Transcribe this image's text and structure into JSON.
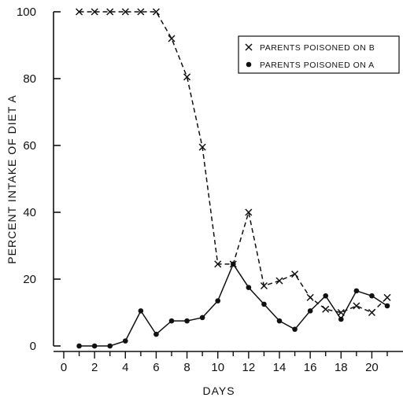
{
  "chart_data": {
    "type": "line",
    "title": "",
    "xlabel": "DAYS",
    "ylabel": "PERCENT INTAKE OF DIET A",
    "xlim": [
      0,
      21
    ],
    "ylim": [
      0,
      100
    ],
    "x_ticks": [
      0,
      2,
      4,
      6,
      8,
      10,
      12,
      14,
      16,
      18,
      20
    ],
    "y_ticks": [
      0,
      20,
      40,
      60,
      80,
      100
    ],
    "grid": false,
    "legend_position": "top-right",
    "series": [
      {
        "name": "PARENTS POISONED ON B",
        "marker": "x",
        "line_style": "dashed",
        "color": "#111111",
        "x": [
          1,
          2,
          3,
          4,
          5,
          6,
          7,
          8,
          9,
          10,
          11,
          12,
          13,
          14,
          15,
          16,
          17,
          18,
          19,
          20,
          21
        ],
        "y": [
          100,
          100,
          100,
          100,
          100,
          100,
          92,
          80.5,
          59.5,
          24.5,
          24.5,
          40,
          18,
          19.5,
          21.5,
          14.5,
          11,
          10,
          12,
          10,
          14.5
        ]
      },
      {
        "name": "PARENTS POISONED ON A",
        "marker": "dot",
        "line_style": "solid",
        "color": "#111111",
        "x": [
          1,
          2,
          3,
          4,
          5,
          6,
          7,
          8,
          9,
          10,
          11,
          12,
          13,
          14,
          15,
          16,
          17,
          18,
          19,
          20,
          21
        ],
        "y": [
          0,
          0,
          0,
          1.5,
          10.5,
          3.5,
          7.5,
          7.5,
          8.5,
          13.5,
          24.5,
          17.5,
          12.5,
          7.5,
          5,
          10.5,
          15,
          8,
          16.5,
          15,
          12
        ]
      }
    ]
  }
}
